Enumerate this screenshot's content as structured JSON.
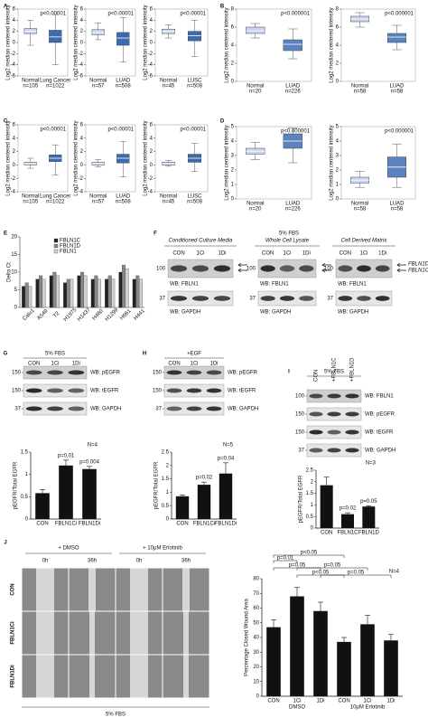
{
  "A": {
    "label": "A",
    "plots": [
      {
        "ylabel": "Log2 median centered intensity",
        "p": "p<0.00001",
        "ylim": [
          -6,
          6
        ],
        "yticks": [
          -6,
          -4,
          -2,
          0,
          2,
          4,
          6
        ],
        "groups": [
          {
            "name": "Normal",
            "n": "n=105",
            "color": "#c8d4ee",
            "box": [
              -0.5,
              1.6,
              2,
              2.5,
              4
            ]
          },
          {
            "name": "Lung Cancer",
            "n": "n=1022",
            "color": "#3c6cae",
            "box": [
              -4,
              0,
              1,
              2.2,
              5
            ]
          }
        ]
      },
      {
        "ylabel": "Log2 median centered intensity",
        "p": "p<0.00001",
        "ylim": [
          -6,
          6
        ],
        "yticks": [
          -6,
          -4,
          -2,
          0,
          2,
          4,
          6
        ],
        "groups": [
          {
            "name": "Normal",
            "n": "n=57",
            "color": "#c8d4ee",
            "box": [
              0.5,
              1.4,
              1.8,
              2.3,
              3.5
            ]
          },
          {
            "name": "LUAD",
            "n": "n=508",
            "color": "#3c6cae",
            "box": [
              -3.5,
              -0.5,
              0.8,
              1.8,
              4.5
            ]
          }
        ]
      },
      {
        "ylabel": "Log2 median centered intensity",
        "p": "p<0.00001",
        "ylim": [
          -6,
          6
        ],
        "yticks": [
          -6,
          -4,
          -2,
          0,
          2,
          4,
          6
        ],
        "groups": [
          {
            "name": "Normal",
            "n": "n=45",
            "color": "#c8d4ee",
            "box": [
              0.8,
              1.6,
              2,
              2.4,
              3.2
            ]
          },
          {
            "name": "LUSC",
            "n": "n=508",
            "color": "#3c6cae",
            "box": [
              -2.5,
              0.3,
              1.2,
              2,
              4
            ]
          }
        ]
      }
    ]
  },
  "B": {
    "label": "B",
    "plots": [
      {
        "ylabel": "Log2 median centered intensity",
        "p": "p<0.000001",
        "ylim": [
          0,
          8
        ],
        "yticks": [
          0,
          2,
          4,
          6,
          8
        ],
        "groups": [
          {
            "name": "Normal",
            "n": "n=20",
            "color": "#c8d4ee",
            "box": [
              4.8,
              5.3,
              5.6,
              6,
              6.4
            ]
          },
          {
            "name": "LUAD",
            "n": "n=226",
            "color": "#5a83c0",
            "box": [
              2.5,
              3.4,
              4.1,
              4.6,
              5.8
            ]
          }
        ]
      },
      {
        "ylabel": "Log2 median centered intensity",
        "p": "p<0.000001",
        "ylim": [
          0,
          8
        ],
        "yticks": [
          0,
          2,
          4,
          6,
          8
        ],
        "groups": [
          {
            "name": "Normal",
            "n": "n=58",
            "color": "#c8d4ee",
            "box": [
              6,
              6.6,
              6.9,
              7.2,
              7.6
            ]
          },
          {
            "name": "LUAD",
            "n": "n=58",
            "color": "#5a83c0",
            "box": [
              3.5,
              4.3,
              4.9,
              5.3,
              6.2
            ]
          }
        ]
      }
    ]
  },
  "C": {
    "label": "C",
    "plots": [
      {
        "ylabel": "Log2 median centered intensity",
        "p": "p<0.00001",
        "ylim": [
          -4,
          6
        ],
        "yticks": [
          -4,
          -2,
          0,
          2,
          4,
          6
        ],
        "groups": [
          {
            "name": "Normal",
            "n": "n=105",
            "color": "#c8d4ee",
            "box": [
              -0.5,
              0,
              0.2,
              0.4,
              1
            ]
          },
          {
            "name": "Lung Cancer",
            "n": "n=1022",
            "color": "#3c6cae",
            "box": [
              -1.5,
              0.5,
              1,
              1.5,
              3
            ]
          }
        ]
      },
      {
        "ylabel": "Log2 median centered intensity",
        "p": "p<0.00001",
        "ylim": [
          -4,
          6
        ],
        "yticks": [
          -4,
          -2,
          0,
          2,
          4,
          6
        ],
        "groups": [
          {
            "name": "Normal",
            "n": "n=57",
            "color": "#c8d4ee",
            "box": [
              -0.3,
              0,
              0.2,
              0.4,
              0.8
            ]
          },
          {
            "name": "LUAD",
            "n": "n=508",
            "color": "#3c6cae",
            "box": [
              -1.8,
              0.3,
              1,
              1.6,
              3.5
            ]
          }
        ]
      },
      {
        "ylabel": "Log2 median centered intensity",
        "p": "p<0.00001",
        "ylim": [
          -4,
          6
        ],
        "yticks": [
          -4,
          -2,
          0,
          2,
          4,
          6
        ],
        "groups": [
          {
            "name": "Normal",
            "n": "n=45",
            "color": "#c8d4ee",
            "box": [
              -0.2,
              0,
              0.2,
              0.4,
              0.7
            ]
          },
          {
            "name": "LUSC",
            "n": "n=508",
            "color": "#3c6cae",
            "box": [
              -1,
              0.4,
              1,
              1.6,
              3.2
            ]
          }
        ]
      }
    ]
  },
  "D": {
    "label": "D",
    "plots": [
      {
        "ylabel": "Log2 median centered intensity",
        "p": "p<0.000001",
        "ylim": [
          0,
          5
        ],
        "yticks": [
          0,
          1,
          2,
          3,
          4,
          5
        ],
        "groups": [
          {
            "name": "Normal",
            "n": "n=20",
            "color": "#c8d4ee",
            "box": [
              2.7,
              3.1,
              3.3,
              3.5,
              3.9
            ]
          },
          {
            "name": "LUAD",
            "n": "n=226",
            "color": "#5a83c0",
            "box": [
              2.5,
              3.5,
              4,
              4.5,
              4.9
            ]
          }
        ]
      },
      {
        "ylabel": "Log2 median centered intensity",
        "p": "p<0.000001",
        "ylim": [
          0,
          5
        ],
        "yticks": [
          0,
          1,
          2,
          3,
          4,
          5
        ],
        "groups": [
          {
            "name": "Normal",
            "n": "n=58",
            "color": "#c8d4ee",
            "box": [
              0.8,
              1.1,
              1.3,
              1.5,
              1.9
            ]
          },
          {
            "name": "LUAD",
            "n": "n=58",
            "color": "#5a83c0",
            "box": [
              0.8,
              1.5,
              2.2,
              2.9,
              3.8
            ]
          }
        ]
      }
    ]
  },
  "E": {
    "label": "E",
    "ylabel": "Delta Ct",
    "ylim": [
      0,
      20
    ],
    "yticks": [
      0,
      5,
      10,
      15,
      20
    ],
    "categories": [
      "Calu1",
      "A549",
      "T2",
      "H1975",
      "H1437",
      "H460",
      "H1299",
      "H661",
      "H441"
    ],
    "series": [
      {
        "name": "FBLN1C",
        "color": "#222222",
        "values": [
          6,
          8,
          9,
          7,
          9,
          8,
          8,
          10,
          8
        ]
      },
      {
        "name": "FBLN1D",
        "color": "#888888",
        "values": [
          7,
          9,
          10,
          8,
          10,
          9,
          9,
          12,
          9
        ]
      },
      {
        "name": "FBLN1",
        "color": "#d0d0d0",
        "values": [
          6,
          8,
          9,
          8,
          9,
          8,
          8,
          11,
          8
        ]
      }
    ]
  },
  "F": {
    "label": "F",
    "header": "5% FBS",
    "blots": [
      {
        "title": "Conditioned Culture Media",
        "lanes": [
          "CON",
          "1Ci",
          "1Di"
        ],
        "rows": [
          {
            "marker": 100,
            "wb": "WB: FBLN1"
          },
          {
            "marker": 37,
            "wb": "WB: GAPDH"
          }
        ]
      },
      {
        "title": "Whole Cell Lysate",
        "lanes": [
          "CON",
          "1Ci",
          "1Di"
        ],
        "rows": [
          {
            "marker": 100,
            "wb": "WB: FBLN1"
          },
          {
            "marker": 37,
            "wb": "WB: GAPDH"
          }
        ]
      },
      {
        "title": "Cell Derived Matrix",
        "lanes": [
          "CON",
          "1Ci",
          "1Di"
        ],
        "rows": [
          {
            "marker": 100,
            "wb": "WB: FBLN1"
          },
          {
            "marker": 37,
            "wb": "WB: GAPDH"
          }
        ]
      }
    ],
    "isoforms": [
      "FBLN1D",
      "FBLN1C"
    ]
  },
  "G": {
    "label": "G",
    "header": "5% FBS",
    "lanes": [
      "CON",
      "1Ci",
      "1Di"
    ],
    "rows": [
      {
        "marker": 150,
        "wb": "WB: pEGFR"
      },
      {
        "marker": 150,
        "wb": "WB: tEGFR"
      },
      {
        "marker": 37,
        "wb": "WB: GAPDH"
      }
    ],
    "chart": {
      "ylabel": "pEGFR/Total EGFR",
      "n": "N=4",
      "ylim": [
        0,
        1.5
      ],
      "yticks": [
        0,
        0.5,
        1,
        1.5
      ],
      "color": "#111111",
      "categories": [
        "CON",
        "FBLN1Ci",
        "FBLN1Di"
      ],
      "values": [
        0.58,
        1.2,
        1.12
      ],
      "errors": [
        0.08,
        0.12,
        0.06
      ],
      "annotations": [
        null,
        "p=0.01",
        "p=0.004"
      ]
    }
  },
  "H": {
    "label": "H",
    "header": "+EGF",
    "lanes": [
      "CON",
      "1Ci",
      "1Di"
    ],
    "rows": [
      {
        "marker": 150,
        "wb": "WB: pEGFR"
      },
      {
        "marker": 150,
        "wb": "WB: tEGFR"
      },
      {
        "marker": 37,
        "wb": "WB: GAPDH"
      }
    ],
    "chart": {
      "ylabel": "pEGFR/Total EGFR",
      "n": "N=5",
      "ylim": [
        0,
        2.5
      ],
      "yticks": [
        0,
        0.5,
        1,
        1.5,
        2,
        2.5
      ],
      "color": "#111111",
      "categories": [
        "CON",
        "FBLN1Ci",
        "FBLN1Di"
      ],
      "values": [
        0.85,
        1.28,
        1.7
      ],
      "errors": [
        0.05,
        0.1,
        0.4
      ],
      "annotations": [
        null,
        "p=0.02",
        "p=0.04"
      ]
    }
  },
  "I": {
    "label": "I",
    "header": "5% FBS",
    "lanes": [
      "CON",
      "+FBLN1C",
      "+FBLN1D"
    ],
    "rows": [
      {
        "marker": 100,
        "wb": "WB: FBLN1"
      },
      {
        "marker": 150,
        "wb": "WB: pEGFR"
      },
      {
        "marker": 150,
        "wb": "WB: tEGFR"
      },
      {
        "marker": 37,
        "wb": "WB: GAPDH"
      }
    ],
    "chart": {
      "ylabel": "pEGFR/Total EGFR",
      "n": "N=3",
      "ylim": [
        0,
        2.5
      ],
      "yticks": [
        0,
        0.5,
        1,
        1.5,
        2,
        2.5
      ],
      "color": "#111111",
      "categories": [
        "CON",
        "FBLN1C",
        "FBLN1D"
      ],
      "values": [
        1.85,
        0.6,
        0.93
      ],
      "errors": [
        0.35,
        0.06,
        0.03
      ],
      "annotations": [
        null,
        "p=0.02",
        "p=0.05"
      ]
    }
  },
  "J": {
    "label": "J",
    "treatments": [
      "+ DMSO",
      "+ 10µM Erlotinib"
    ],
    "times": [
      "0h",
      "36h",
      "0h",
      "36h"
    ],
    "rows": [
      "CON",
      "FBLN1Ci",
      "FBLN1Di"
    ],
    "footer": "5% FBS",
    "chart": {
      "ylabel": "Percentage Closed Wound Area",
      "n": "N=4",
      "ylim": [
        0,
        80
      ],
      "yticks": [
        0,
        10,
        20,
        30,
        40,
        50,
        60,
        70,
        80
      ],
      "color": "#111111",
      "categories": [
        "CON",
        "1Ci",
        "1Di",
        "CON",
        "1Ci",
        "1Di"
      ],
      "values": [
        47,
        68,
        58,
        37,
        49,
        38
      ],
      "errors": [
        5,
        6,
        6,
        3,
        6,
        4
      ],
      "group_labels": [
        "DMSO",
        "10µM Erlotinib"
      ],
      "comparisons": [
        "p<0.05",
        "p=0.01",
        "p=0.05",
        "p=0.05",
        "p=0.05",
        "p<0.05"
      ]
    }
  }
}
